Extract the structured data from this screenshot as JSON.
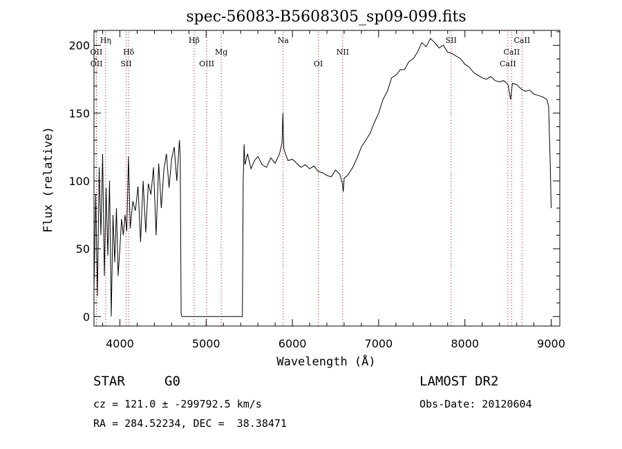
{
  "chart_data": {
    "type": "line",
    "title": "spec-56083-B5608305_sp09-099.fits",
    "xlabel": "Wavelength (Å)",
    "ylabel": "Flux (relative)",
    "xlim": [
      3700,
      9100
    ],
    "ylim": [
      -7,
      211
    ],
    "x_ticks": [
      4000,
      5000,
      6000,
      7000,
      8000,
      9000
    ],
    "y_ticks": [
      0,
      50,
      100,
      150,
      200
    ],
    "grid": false,
    "series": [
      {
        "x": [
          3700,
          3720,
          3740,
          3760,
          3780,
          3800,
          3820,
          3840,
          3860,
          3880,
          3900,
          3920,
          3940,
          3960,
          3980,
          4000,
          4020,
          4040,
          4060,
          4080,
          4100,
          4120,
          4150,
          4180,
          4210,
          4240,
          4270,
          4300,
          4330,
          4360,
          4390,
          4420,
          4450,
          4480,
          4510,
          4540,
          4570,
          4600,
          4630,
          4660,
          4690,
          4700,
          4710,
          4720,
          5420,
          5430,
          5440,
          5450,
          5480,
          5520,
          5560,
          5600,
          5650,
          5700,
          5750,
          5800,
          5850,
          5880,
          5890,
          5900,
          5920,
          5950,
          6000,
          6050,
          6100,
          6150,
          6200,
          6250,
          6300,
          6350,
          6400,
          6450,
          6500,
          6550,
          6580,
          6590,
          6600,
          6620,
          6650,
          6700,
          6750,
          6800,
          6850,
          6900,
          6950,
          7000,
          7050,
          7100,
          7150,
          7200,
          7250,
          7300,
          7350,
          7400,
          7450,
          7500,
          7550,
          7600,
          7650,
          7700,
          7750,
          7800,
          7850,
          7900,
          7950,
          8000,
          8050,
          8100,
          8150,
          8200,
          8250,
          8300,
          8350,
          8400,
          8450,
          8500,
          8530,
          8550,
          8600,
          8650,
          8700,
          8750,
          8800,
          8850,
          8900,
          8950,
          8970,
          8990,
          9000
        ],
        "y": [
          20,
          90,
          15,
          110,
          60,
          120,
          30,
          95,
          45,
          100,
          0,
          75,
          40,
          80,
          30,
          50,
          72,
          60,
          75,
          63,
          118,
          65,
          85,
          78,
          96,
          55,
          100,
          62,
          98,
          90,
          110,
          60,
          113,
          80,
          108,
          120,
          95,
          116,
          125,
          100,
          130,
          118,
          2,
          0,
          0,
          100,
          127,
          112,
          120,
          109,
          115,
          118,
          112,
          110,
          117,
          113,
          120,
          128,
          150,
          124,
          120,
          115,
          116,
          113,
          110,
          112,
          109,
          111,
          107,
          106,
          104,
          103,
          108,
          105,
          98,
          92,
          102,
          103,
          105,
          110,
          117,
          125,
          130,
          135,
          143,
          150,
          160,
          166,
          176,
          178,
          182,
          182,
          188,
          190,
          195,
          202,
          199,
          205,
          202,
          198,
          200,
          195,
          194,
          192,
          190,
          186,
          184,
          180,
          178,
          176,
          175,
          177,
          174,
          173,
          174,
          171,
          160,
          172,
          171,
          168,
          166,
          167,
          164,
          163,
          162,
          160,
          155,
          110,
          80
        ]
      }
    ],
    "lines": [
      {
        "label": "Hη",
        "x": 3835,
        "row": 1
      },
      {
        "label": "OII",
        "x": 3727,
        "row": 2
      },
      {
        "label": "OII",
        "x": 3729,
        "row": 3
      },
      {
        "label": "Hδ",
        "x": 4102,
        "row": 2
      },
      {
        "label": "SII",
        "x": 4072,
        "row": 3
      },
      {
        "label": "Hβ",
        "x": 4861,
        "row": 1
      },
      {
        "label": "Mg",
        "x": 5175,
        "row": 2
      },
      {
        "label": "OIII",
        "x": 5007,
        "row": 3
      },
      {
        "label": "Na",
        "x": 5893,
        "row": 1
      },
      {
        "label": "NII",
        "x": 6583,
        "row": 2
      },
      {
        "label": "OI",
        "x": 6300,
        "row": 3
      },
      {
        "label": "SII",
        "x": 7840,
        "row": 1
      },
      {
        "label": "CaII",
        "x": 8662,
        "row": 1
      },
      {
        "label": "CaII",
        "x": 8542,
        "row": 2
      },
      {
        "label": "CaII",
        "x": 8498,
        "row": 3
      }
    ]
  },
  "info": {
    "object_class": "STAR",
    "subclass": "G0",
    "survey": "LAMOST DR2",
    "cz_line": "cz = 121.0 ± -299792.5 km/s",
    "obs_date": "Obs-Date: 20120604",
    "coords": "RA = 284.52234, DEC =  38.38471"
  },
  "colors": {
    "spectrum": "#000000",
    "marker_line": "#c00000",
    "axes": "#000000"
  }
}
